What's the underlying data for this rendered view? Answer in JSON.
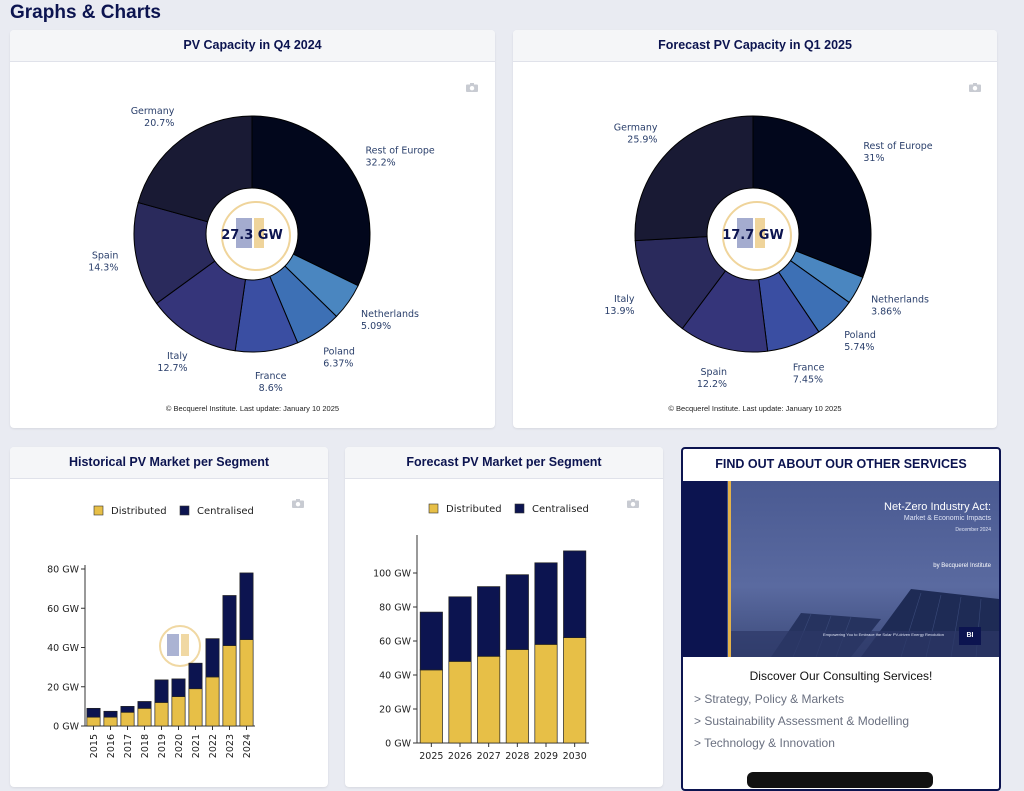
{
  "page": {
    "title": "Graphs & Charts"
  },
  "footnote": "© Becquerel Institute. Last update: January 10 2025",
  "colors": {
    "navy": "#0c1450",
    "gold": "#e7bf47",
    "pie_palette": [
      "#02071c",
      "#4484bf",
      "#3b6fb6",
      "#3a4fa4",
      "#323478",
      "#2a2a5e",
      "#1c1c3c",
      "#2c2d5f"
    ]
  },
  "chart_data": [
    {
      "type": "pie",
      "title": "PV Capacity in Q4 2024",
      "center_label": "27.3 GW",
      "slices": [
        {
          "label": "Rest of Europe",
          "value": 32.2,
          "pct": "32.2%",
          "color": "#02071c"
        },
        {
          "label": "Netherlands",
          "value": 5.09,
          "pct": "5.09%",
          "color": "#4a86c0"
        },
        {
          "label": "Poland",
          "value": 6.37,
          "pct": "6.37%",
          "color": "#3d70b5"
        },
        {
          "label": "France",
          "value": 8.6,
          "pct": "8.6%",
          "color": "#3a4ea2"
        },
        {
          "label": "Italy",
          "value": 12.7,
          "pct": "12.7%",
          "color": "#35357a"
        },
        {
          "label": "Spain",
          "value": 14.3,
          "pct": "14.3%",
          "color": "#2a2a5c"
        },
        {
          "label": "Germany",
          "value": 20.7,
          "pct": "20.7%",
          "color": "#191a34"
        }
      ]
    },
    {
      "type": "pie",
      "title": "Forecast PV Capacity in Q1 2025",
      "center_label": "17.7 GW",
      "slices": [
        {
          "label": "Rest of Europe",
          "value": 31,
          "pct": "31%",
          "color": "#02071c"
        },
        {
          "label": "Netherlands",
          "value": 3.86,
          "pct": "3.86%",
          "color": "#4a86c0"
        },
        {
          "label": "Poland",
          "value": 5.74,
          "pct": "5.74%",
          "color": "#3d70b5"
        },
        {
          "label": "France",
          "value": 7.45,
          "pct": "7.45%",
          "color": "#3a4ea2"
        },
        {
          "label": "Spain",
          "value": 12.2,
          "pct": "12.2%",
          "color": "#35357a"
        },
        {
          "label": "Italy",
          "value": 13.9,
          "pct": "13.9%",
          "color": "#2a2a5c"
        },
        {
          "label": "Germany",
          "value": 25.9,
          "pct": "25.9%",
          "color": "#191a34"
        }
      ]
    },
    {
      "type": "bar",
      "stacked": true,
      "title": "Historical PV Market per Segment",
      "categories": [
        "2015",
        "2016",
        "2017",
        "2018",
        "2019",
        "2020",
        "2021",
        "2022",
        "2023",
        "2024"
      ],
      "series": [
        {
          "name": "Distributed",
          "color": "#e7bf47",
          "values": [
            4.5,
            4.5,
            7,
            9,
            12,
            15,
            19,
            25,
            41,
            44
          ]
        },
        {
          "name": "Centralised",
          "color": "#0c1450",
          "values": [
            4.5,
            3,
            3,
            3.5,
            11.5,
            9,
            13,
            19.5,
            25.5,
            34
          ]
        }
      ],
      "ylim": [
        0,
        80
      ],
      "yticks": [
        0,
        20,
        40,
        60,
        80
      ],
      "ytick_labels": [
        "0 GW",
        "20 GW",
        "40 GW",
        "60 GW",
        "80 GW"
      ]
    },
    {
      "type": "bar",
      "stacked": true,
      "title": "Forecast PV Market per Segment",
      "categories": [
        "2025",
        "2026",
        "2027",
        "2028",
        "2029",
        "2030"
      ],
      "series": [
        {
          "name": "Distributed",
          "color": "#e7bf47",
          "values": [
            43,
            48,
            51,
            55,
            58,
            62
          ]
        },
        {
          "name": "Centralised",
          "color": "#0c1450",
          "values": [
            34,
            38,
            41,
            44,
            48,
            51
          ]
        }
      ],
      "ylim": [
        0,
        120
      ],
      "yticks": [
        0,
        20,
        40,
        60,
        80,
        100
      ],
      "ytick_labels": [
        "0 GW",
        "20 GW",
        "40 GW",
        "60 GW",
        "80 GW",
        "100 GW"
      ]
    }
  ],
  "services": {
    "title": "FIND OUT ABOUT OUR OTHER SERVICES",
    "banner": {
      "title": "Net-Zero Industry Act:",
      "subtitle": "Market & Economic Impacts",
      "date": "December 2024",
      "byline": "by Becquerel Institute",
      "tagline": "Empowering You to Embrace the Solar PV-driven Energy Revolution",
      "logo": "BI"
    },
    "subtitle": "Discover Our Consulting Services!",
    "items": [
      "> Strategy, Policy & Markets",
      "> Sustainability Assessment & Modelling",
      "> Technology & Innovation"
    ]
  }
}
